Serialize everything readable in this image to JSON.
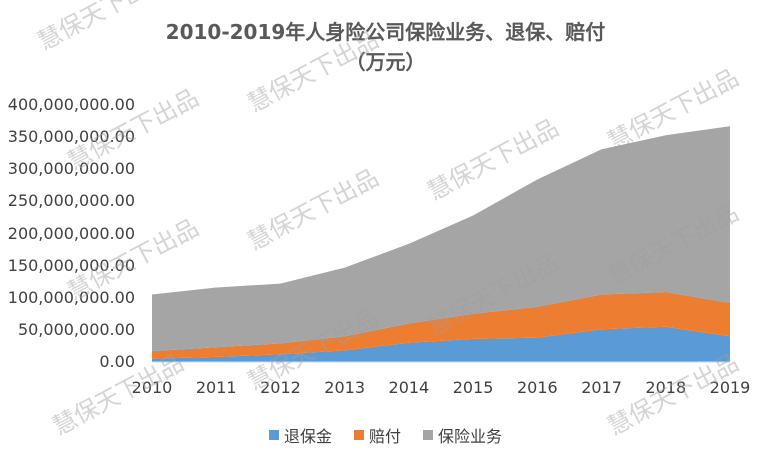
{
  "chart_data": {
    "type": "area",
    "stacked": true,
    "title": "2010-2019年人身险公司保险业务、退保、赔付",
    "subtitle": "（万元）",
    "categories": [
      "2010",
      "2011",
      "2012",
      "2013",
      "2014",
      "2015",
      "2016",
      "2017",
      "2018",
      "2019"
    ],
    "series": [
      {
        "name": "退保金",
        "color": "#5B9BD5",
        "values": [
          5000000,
          8000000,
          12000000,
          18000000,
          30000000,
          36000000,
          38000000,
          51000000,
          55000000,
          40000000
        ]
      },
      {
        "name": "赔付",
        "color": "#ED7D31",
        "values": [
          12000000,
          15000000,
          17000000,
          22000000,
          30000000,
          39000000,
          48000000,
          54000000,
          54000000,
          52000000
        ]
      },
      {
        "name": "保险业务",
        "color": "#A5A5A5",
        "values": [
          88000000,
          93000000,
          93000000,
          107000000,
          124000000,
          153000000,
          198000000,
          226000000,
          244000000,
          275000000
        ]
      }
    ],
    "ylim": [
      0,
      400000000
    ],
    "yticks": [
      "400,000,000.00",
      "350,000,000.00",
      "300,000,000.00",
      "250,000,000.00",
      "200,000,000.00",
      "150,000,000.00",
      "100,000,000.00",
      "50,000,000.00",
      "0.00"
    ],
    "legend_position": "bottom"
  },
  "watermark": "慧保天下出品"
}
